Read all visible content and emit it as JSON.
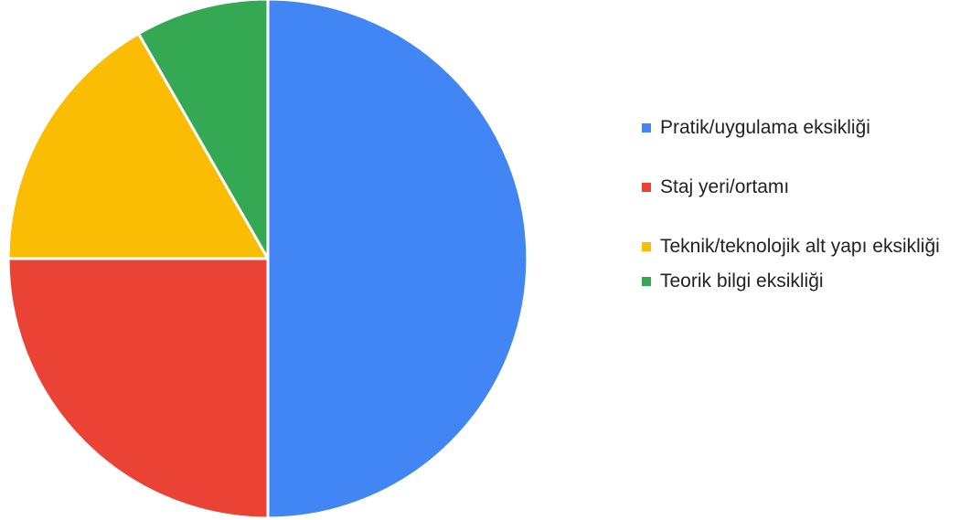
{
  "chart_data": {
    "type": "pie",
    "title": "",
    "slices": [
      {
        "label": "Pratik/uygulama eksikliği",
        "value": 50,
        "color": "#4285F4"
      },
      {
        "label": "Staj yeri/ortamı",
        "value": 25,
        "color": "#EA4335"
      },
      {
        "label": "Teknik/teknolojik alt yapı eksikliği",
        "value": 16.7,
        "color": "#FBBC04"
      },
      {
        "label": "Teorik bilgi eksikliği",
        "value": 8.3,
        "color": "#34A853"
      }
    ],
    "start_angle_deg": 0,
    "direction": "clockwise",
    "legend_position": "right"
  }
}
